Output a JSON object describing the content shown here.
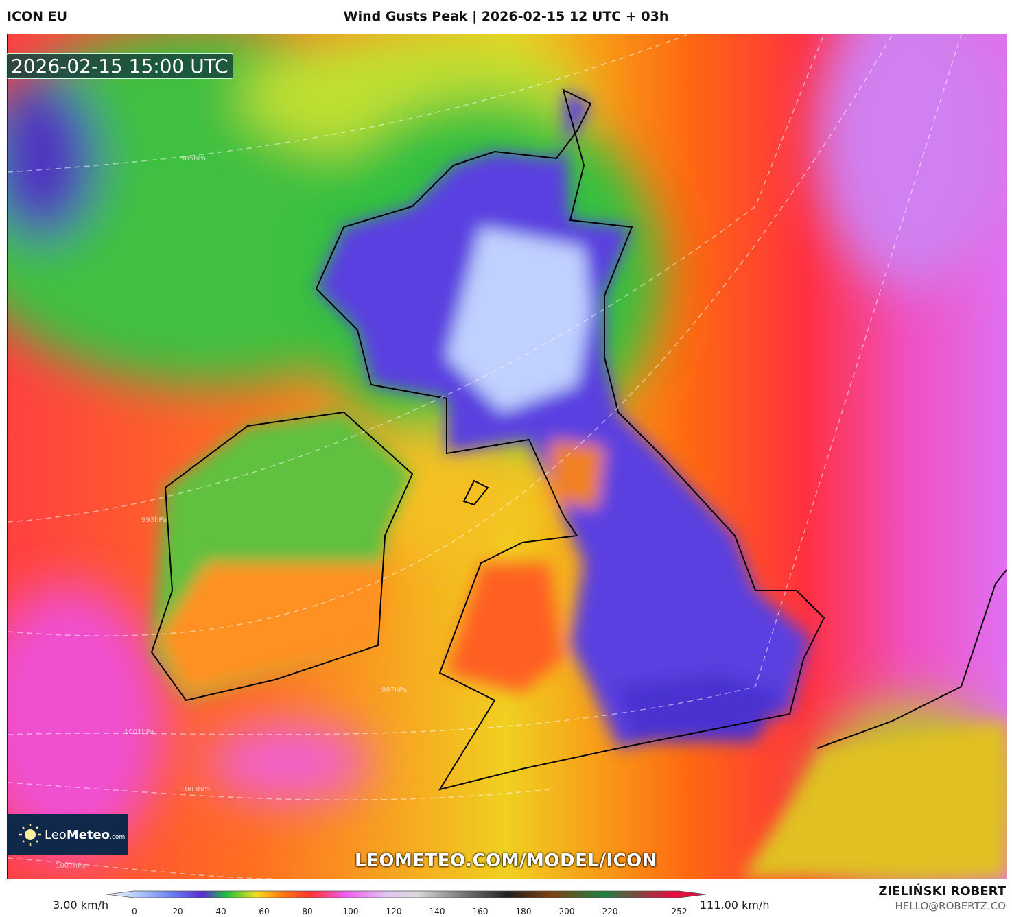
{
  "header": {
    "model": "ICON EU",
    "title": "Wind Gusts Peak | 2026-02-15 12 UTC + 03h"
  },
  "map": {
    "valid_time": "2026-02-15 15:00 UTC",
    "watermark": "LEOMETEO.COM/MODEL/ICON",
    "isobar_labels": [
      "985hPa",
      "993hPa",
      "997hPa",
      "1001hPa",
      "1003hPa",
      "1007hPa"
    ]
  },
  "logo": {
    "brand_light": "Leo",
    "brand_bold": "Meteo",
    "brand_suffix": ".com"
  },
  "colorbar": {
    "min_label": "3.00 km/h",
    "max_label": "111.00 km/h",
    "ticks": [
      "0",
      "20",
      "40",
      "60",
      "80",
      "100",
      "120",
      "140",
      "160",
      "180",
      "200",
      "220",
      "252"
    ],
    "colors": [
      "#dfe8f8",
      "#6a7ef0",
      "#5a2bd0",
      "#20c040",
      "#f0e020",
      "#ff8010",
      "#ff3030",
      "#f060f0",
      "#e0c8f0",
      "#d8d8d8",
      "#707070",
      "#202020",
      "#804010",
      "#208040",
      "#e01040"
    ]
  },
  "footer": {
    "author": "ZIELIŃSKI ROBERT",
    "email": "HELLO@ROBERTZ.CO"
  }
}
